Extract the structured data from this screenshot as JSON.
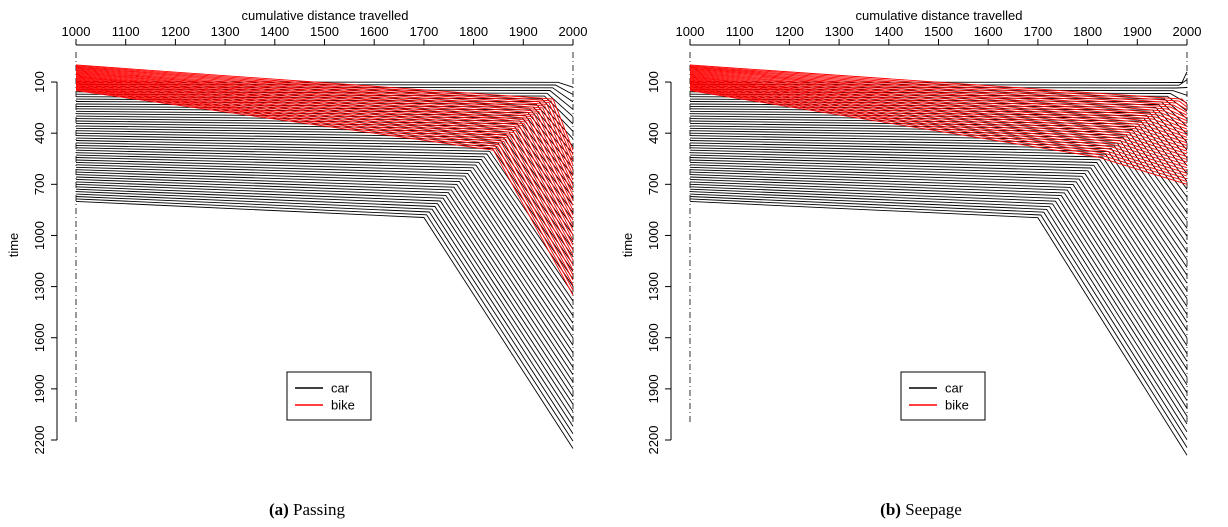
{
  "chart_data": [
    {
      "type": "line",
      "subtitle_letter": "(a)",
      "subtitle_text": "Passing",
      "xlabel": "cumulative distance travelled",
      "ylabel": "time",
      "x_axis_position": "top",
      "y_axis_reversed": true,
      "xlim": [
        1000,
        2000
      ],
      "ylim": [
        2200,
        0
      ],
      "x_ticks": [
        1000,
        1100,
        1200,
        1300,
        1400,
        1500,
        1600,
        1700,
        1800,
        1900,
        2000
      ],
      "y_ticks": [
        100,
        400,
        700,
        1000,
        1300,
        1600,
        1900,
        2200
      ],
      "legend_position": "bottom-center",
      "legend": [
        {
          "name": "car",
          "color": "#000000"
        },
        {
          "name": "bike",
          "color": "#ff0000"
        }
      ],
      "series": [
        {
          "name": "car",
          "color": "#000000",
          "count": 50,
          "start_time": [
            100,
            800
          ],
          "break_distance": [
            1970,
            1700
          ],
          "break_time": [
            10,
            790
          ],
          "end_time": [
            130,
            2250
          ]
        },
        {
          "name": "bike",
          "color": "#ff0000",
          "count": 30,
          "start_time": [
            0,
            150
          ],
          "break_distance": [
            1960,
            1840
          ],
          "break_time": [
            200,
            350
          ],
          "end_time": [
            500,
            1350
          ]
        }
      ]
    },
    {
      "type": "line",
      "subtitle_letter": "(b)",
      "subtitle_text": "Seepage",
      "xlabel": "cumulative distance travelled",
      "ylabel": "time",
      "x_axis_position": "top",
      "y_axis_reversed": true,
      "xlim": [
        1000,
        2000
      ],
      "ylim": [
        2200,
        0
      ],
      "x_ticks": [
        1000,
        1100,
        1200,
        1300,
        1400,
        1500,
        1600,
        1700,
        1800,
        1900,
        2000
      ],
      "y_ticks": [
        100,
        400,
        700,
        1000,
        1300,
        1600,
        1900,
        2200
      ],
      "legend_position": "bottom-center",
      "legend": [
        {
          "name": "car",
          "color": "#000000"
        },
        {
          "name": "bike",
          "color": "#ff0000"
        }
      ],
      "series": [
        {
          "name": "car",
          "color": "#000000",
          "count": 50,
          "start_time": [
            100,
            800
          ],
          "break_distance": [
            1990,
            1700
          ],
          "break_time": [
            20,
            800
          ],
          "end_time": [
            40,
            2290
          ]
        },
        {
          "name": "bike",
          "color": "#ff0000",
          "count": 30,
          "start_time": [
            0,
            150
          ],
          "break_distance": [
            1990,
            1820
          ],
          "break_time": [
            200,
            390
          ],
          "end_time": [
            230,
            700
          ]
        }
      ]
    }
  ]
}
